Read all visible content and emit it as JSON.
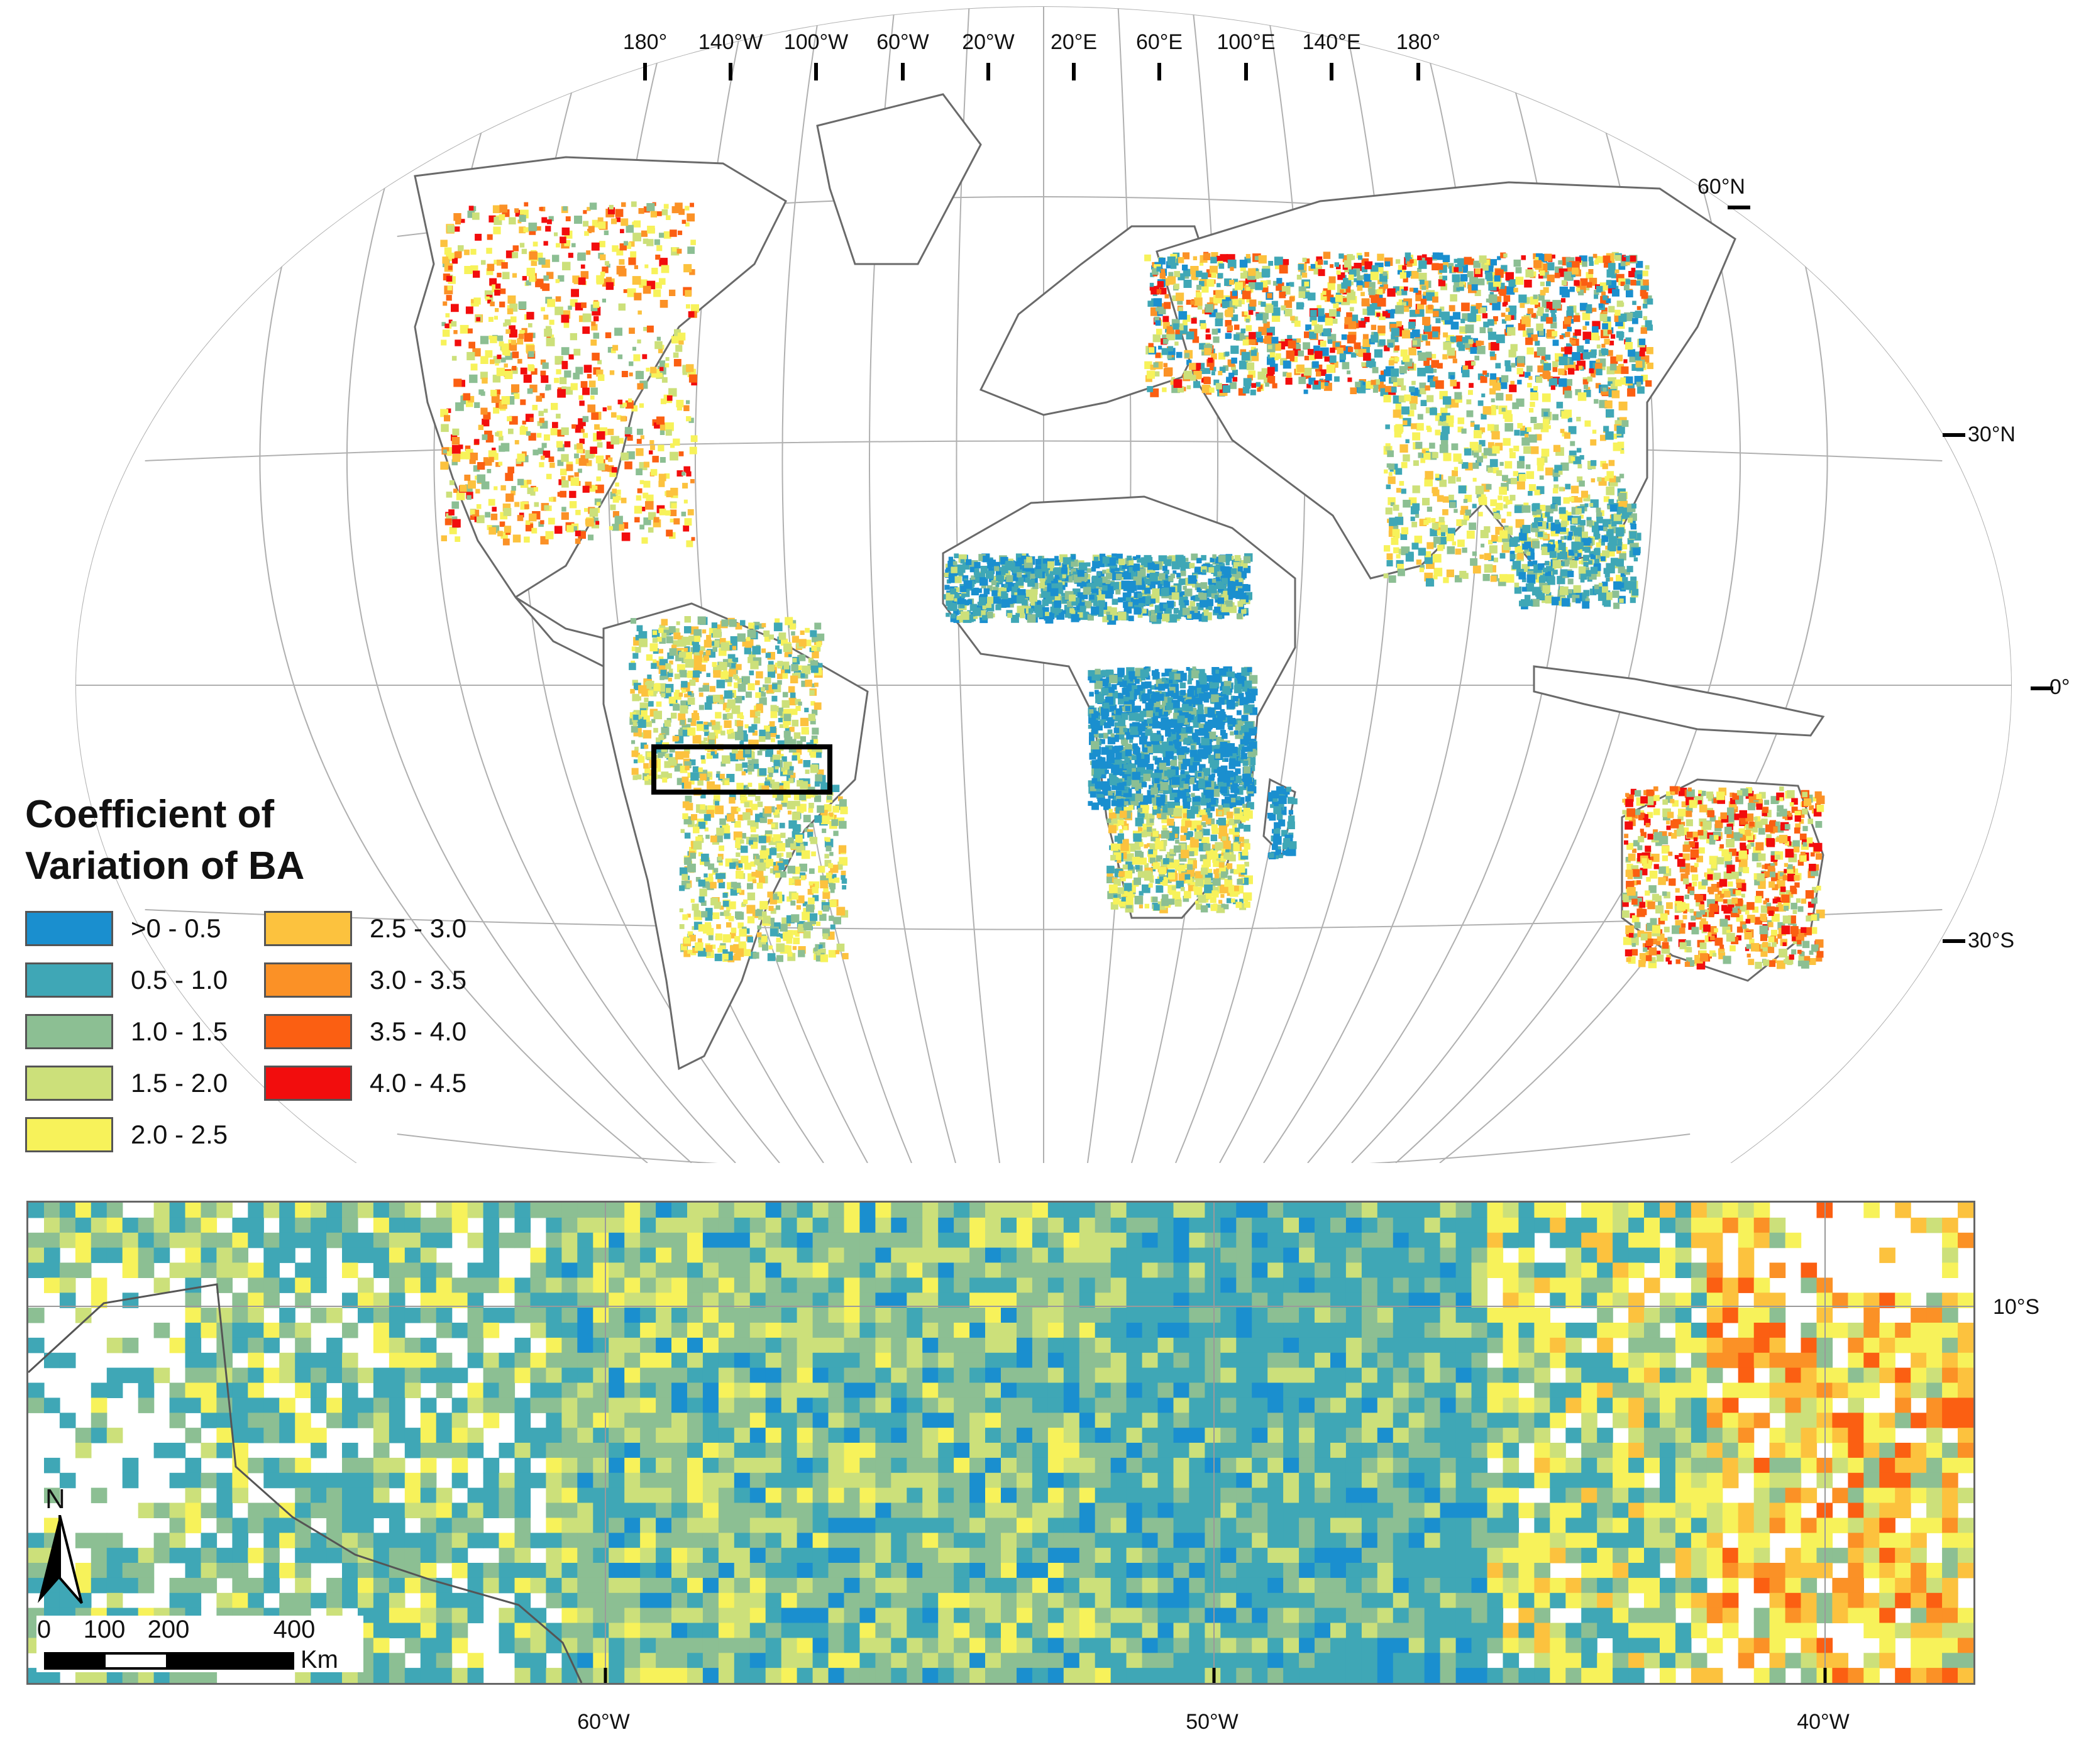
{
  "world_map": {
    "lon_labels": [
      "180°",
      "140°W",
      "100°W",
      "60°W",
      "20°W",
      "20°E",
      "60°E",
      "100°E",
      "140°E",
      "180°"
    ],
    "lat_labels": [
      "60°N",
      "30°N",
      "0°",
      "30°S"
    ],
    "study_box": "rectangle"
  },
  "legend": {
    "title_line1": "Coefficient of",
    "title_line2": "Variation of BA",
    "classes": [
      {
        "label": ">0 - 0.5",
        "color": "#1a8fcf"
      },
      {
        "label": "0.5 - 1.0",
        "color": "#3fa7b6"
      },
      {
        "label": "1.0 - 1.5",
        "color": "#8cbf93"
      },
      {
        "label": "1.5 - 2.0",
        "color": "#cce07a"
      },
      {
        "label": "2.0 - 2.5",
        "color": "#f7f25a"
      },
      {
        "label": "2.5 - 3.0",
        "color": "#fcc23e"
      },
      {
        "label": "3.0 - 3.5",
        "color": "#fb9126"
      },
      {
        "label": "3.5 - 4.0",
        "color": "#fb5f12"
      },
      {
        "label": "4.0 - 4.5",
        "color": "#f20d0d"
      }
    ]
  },
  "detail_map": {
    "lon_labels": [
      "60°W",
      "50°W",
      "40°W"
    ],
    "lat_label": "10°S",
    "north_label": "N",
    "scale_ticks": [
      "0",
      "100",
      "200",
      "400"
    ],
    "scale_unit": "Km"
  },
  "colors": {
    "graticule": "#b0b0b0",
    "coastline": "#6a6a6a",
    "border": "#9a9a9a"
  }
}
